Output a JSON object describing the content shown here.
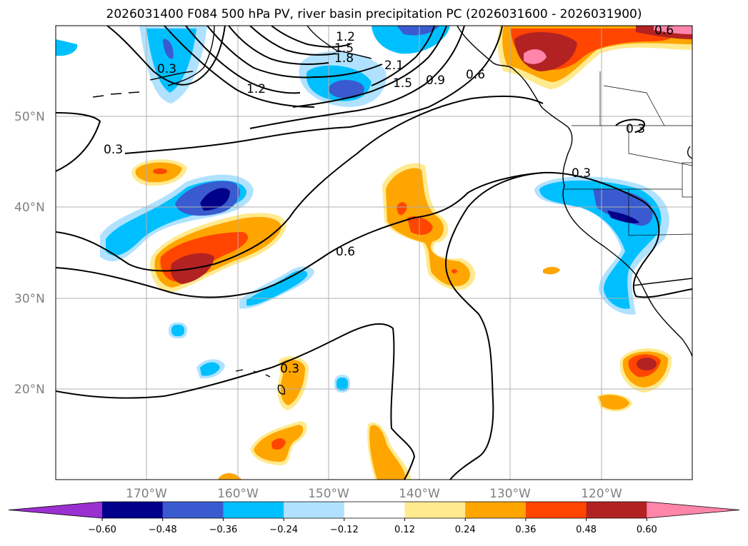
{
  "title": "2026031400 F084 500 hPa PV, river basin precipitation PC (2026031600 - 2026031900)",
  "lat_labels": [
    "50°N",
    "40°N",
    "30°N",
    "20°N"
  ],
  "lon_labels": [
    "170°W",
    "160°W",
    "150°W",
    "140°W",
    "130°W",
    "120°W"
  ],
  "contour_labels": [
    "1.2",
    "1.5",
    "1.8",
    "2.1",
    "1.5",
    "0.9",
    "0.6",
    "1.2",
    "0.3",
    "0.3",
    "0.3",
    "0.6",
    "0.3",
    "0.3",
    "0.6"
  ],
  "colorbar": {
    "tick_labels": [
      "−0.60",
      "−0.48",
      "−0.36",
      "−0.24",
      "−0.12",
      "0.12",
      "0.24",
      "0.36",
      "0.48",
      "0.60"
    ],
    "colors": [
      "#9b30d0",
      "#00008b",
      "#3a5bcf",
      "#00bfff",
      "#b0e2ff",
      "#ffffff",
      "#ffea8f",
      "#ffa500",
      "#ff4500",
      "#b22222",
      "#ff85a9"
    ],
    "extend": "both"
  },
  "colors": {
    "neg_strong": "#00008b",
    "neg_mid": "#3a5bcf",
    "neg": "#00bfff",
    "neg_weak": "#b0e2ff",
    "pos_weak": "#ffea8f",
    "pos": "#ffa500",
    "pos_mid": "#ff4500",
    "pos_strong": "#b22222",
    "pos_max": "#ff85a9"
  }
}
